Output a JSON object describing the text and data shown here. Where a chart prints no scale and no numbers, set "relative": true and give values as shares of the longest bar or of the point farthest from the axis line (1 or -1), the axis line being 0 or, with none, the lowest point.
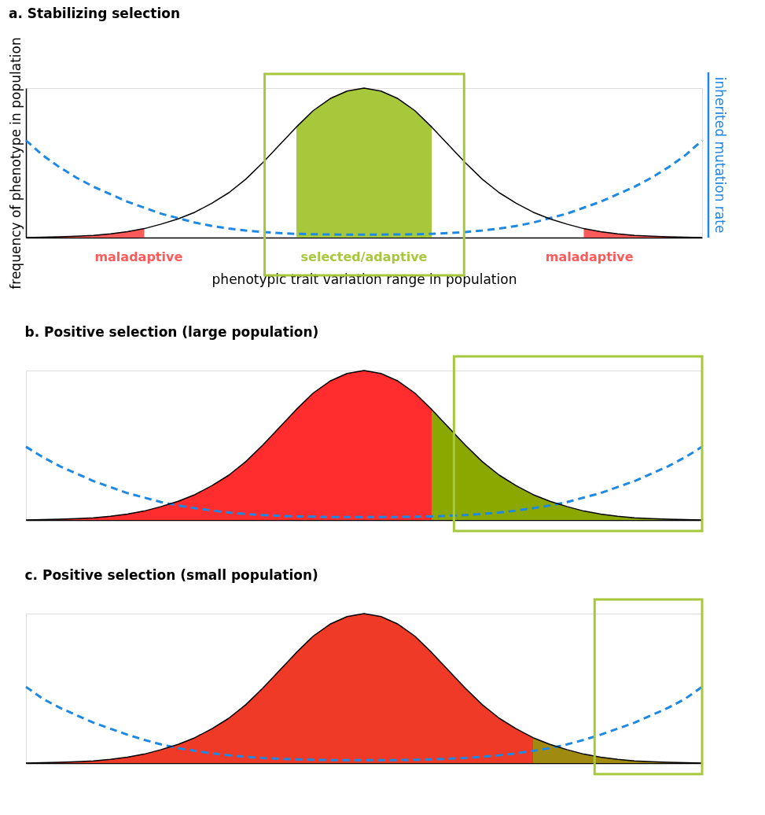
{
  "chart_data": [
    {
      "type": "line",
      "title": "a. Stabilizing selection",
      "xlabel": "phenotypic trait variation range in population",
      "ylabel": "frequency of phenotype in population",
      "y2label": "inherited mutation rate",
      "relative": true,
      "tick_labels": false,
      "categories": [
        null,
        null,
        null,
        null,
        null,
        null,
        null,
        null,
        null,
        null,
        null,
        null,
        null,
        null,
        null,
        null,
        null,
        null,
        null,
        null,
        null,
        null,
        null,
        null,
        null,
        null,
        null,
        null,
        null,
        null,
        null,
        null,
        null,
        null,
        null,
        null,
        null,
        null,
        null,
        null,
        null
      ],
      "annotations": [
        "maladaptive",
        "selected/adaptive",
        "maladaptive"
      ],
      "series": [
        {
          "type": "area",
          "color": "#ff5a5a",
          "values": [
            0,
            0.002,
            0.005,
            0.009,
            0.015,
            0.025,
            0.04,
            0.06,
            null,
            null,
            null,
            null,
            null,
            null,
            null,
            null,
            null,
            null,
            null,
            null,
            null,
            null,
            null,
            null,
            null,
            null,
            null,
            null,
            null,
            null,
            null,
            null,
            null,
            null,
            null,
            null,
            null,
            null,
            null,
            null,
            null
          ]
        },
        {
          "type": "area",
          "color": "#a8c83c",
          "values": [
            null,
            null,
            null,
            null,
            null,
            null,
            null,
            null,
            null,
            null,
            null,
            null,
            null,
            null,
            null,
            null,
            0.74,
            0.85,
            0.93,
            0.98,
            1,
            0.98,
            0.93,
            0.85,
            0.74,
            null,
            null,
            null,
            null,
            null,
            null,
            null,
            null,
            null,
            null,
            null,
            null,
            null,
            null,
            null,
            null
          ]
        },
        {
          "type": "area",
          "color": "#ff5a5a",
          "values": [
            null,
            null,
            null,
            null,
            null,
            null,
            null,
            null,
            null,
            null,
            null,
            null,
            null,
            null,
            null,
            null,
            null,
            null,
            null,
            null,
            null,
            null,
            null,
            null,
            null,
            null,
            null,
            null,
            null,
            null,
            null,
            null,
            null,
            0.06,
            0.04,
            0.025,
            0.015,
            0.009,
            0.005,
            0.002,
            0
          ]
        },
        {
          "type": "line",
          "color": "#1e88e5",
          "line_style": "dashed",
          "values": [
            0.65,
            0.55,
            0.47,
            0.4,
            0.34,
            0.29,
            0.24,
            0.2,
            0.16,
            0.13,
            0.1,
            0.078,
            0.06,
            0.047,
            0.037,
            0.03,
            0.025,
            0.022,
            0.021,
            0.02,
            0.02,
            0.02,
            0.021,
            0.022,
            0.025,
            0.03,
            0.037,
            0.047,
            0.06,
            0.078,
            0.1,
            0.13,
            0.16,
            0.2,
            0.24,
            0.29,
            0.34,
            0.4,
            0.47,
            0.55,
            0.65
          ]
        },
        {
          "type": "line",
          "color": "#000000",
          "values": [
            0,
            0.002,
            0.005,
            0.009,
            0.015,
            0.025,
            0.04,
            0.06,
            0.09,
            0.125,
            0.17,
            0.23,
            0.3,
            0.39,
            0.5,
            0.62,
            0.74,
            0.85,
            0.93,
            0.98,
            1,
            0.98,
            0.93,
            0.85,
            0.74,
            0.62,
            0.5,
            0.39,
            0.3,
            0.23,
            0.17,
            0.125,
            0.09,
            0.06,
            0.04,
            0.025,
            0.015,
            0.009,
            0.005,
            0.002,
            0
          ]
        }
      ]
    },
    {
      "type": "line",
      "title": "b. Positive selection (large population)",
      "relative": true,
      "tick_labels": false,
      "categories": [
        null,
        null,
        null,
        null,
        null,
        null,
        null,
        null,
        null,
        null,
        null,
        null,
        null,
        null,
        null,
        null,
        null,
        null,
        null,
        null,
        null,
        null,
        null,
        null,
        null,
        null,
        null,
        null,
        null,
        null,
        null,
        null,
        null,
        null,
        null,
        null,
        null,
        null,
        null,
        null,
        null
      ],
      "series": [
        {
          "type": "area",
          "color": "#ff2d2d",
          "values": [
            0,
            0.002,
            0.005,
            0.009,
            0.015,
            0.025,
            0.04,
            0.06,
            0.09,
            0.125,
            0.17,
            0.23,
            0.3,
            0.39,
            0.5,
            0.62,
            0.74,
            0.85,
            0.93,
            0.98,
            1,
            0.98,
            0.93,
            0.85,
            0.74,
            null,
            null,
            null,
            null,
            null,
            null,
            null,
            null,
            null,
            null,
            null,
            null,
            null,
            null,
            null,
            null
          ]
        },
        {
          "type": "area",
          "color": "#8aa800",
          "values": [
            null,
            null,
            null,
            null,
            null,
            null,
            null,
            null,
            null,
            null,
            null,
            null,
            null,
            null,
            null,
            null,
            null,
            null,
            null,
            null,
            null,
            null,
            null,
            null,
            0.74,
            0.62,
            0.5,
            0.39,
            0.3,
            0.23,
            0.17,
            0.125,
            0.09,
            0.06,
            0.04,
            0.025,
            0.015,
            0.009,
            0.005,
            0.002,
            0
          ]
        },
        {
          "type": "line",
          "color": "#1e88e5",
          "line_style": "dashed",
          "values": [
            0.49,
            0.42,
            0.36,
            0.31,
            0.26,
            0.22,
            0.18,
            0.15,
            0.12,
            0.097,
            0.079,
            0.063,
            0.05,
            0.04,
            0.033,
            0.028,
            0.024,
            0.022,
            0.02,
            0.02,
            0.02,
            0.02,
            0.02,
            0.022,
            0.024,
            0.028,
            0.033,
            0.04,
            0.05,
            0.063,
            0.079,
            0.097,
            0.12,
            0.15,
            0.18,
            0.22,
            0.26,
            0.31,
            0.36,
            0.42,
            0.49
          ]
        },
        {
          "type": "line",
          "color": "#000000",
          "values": [
            0,
            0.002,
            0.005,
            0.009,
            0.015,
            0.025,
            0.04,
            0.06,
            0.09,
            0.125,
            0.17,
            0.23,
            0.3,
            0.39,
            0.5,
            0.62,
            0.74,
            0.85,
            0.93,
            0.98,
            1,
            0.98,
            0.93,
            0.85,
            0.74,
            0.62,
            0.5,
            0.39,
            0.3,
            0.23,
            0.17,
            0.125,
            0.09,
            0.06,
            0.04,
            0.025,
            0.015,
            0.009,
            0.005,
            0.002,
            0
          ]
        }
      ]
    },
    {
      "type": "line",
      "title": "c. Positive selection (small population)",
      "relative": true,
      "tick_labels": false,
      "categories": [
        null,
        null,
        null,
        null,
        null,
        null,
        null,
        null,
        null,
        null,
        null,
        null,
        null,
        null,
        null,
        null,
        null,
        null,
        null,
        null,
        null,
        null,
        null,
        null,
        null,
        null,
        null,
        null,
        null,
        null,
        null,
        null,
        null,
        null,
        null,
        null,
        null,
        null,
        null,
        null,
        null
      ],
      "series": [
        {
          "type": "area",
          "color": "#f03a28",
          "values": [
            0,
            0.002,
            0.005,
            0.009,
            0.015,
            0.025,
            0.04,
            0.06,
            0.09,
            0.125,
            0.17,
            0.23,
            0.3,
            0.39,
            0.5,
            0.62,
            0.74,
            0.85,
            0.93,
            0.98,
            1,
            0.98,
            0.93,
            0.85,
            0.74,
            0.62,
            0.5,
            0.39,
            0.3,
            0.23,
            0.17,
            null,
            null,
            null,
            null,
            null,
            null,
            null,
            null,
            null,
            null
          ]
        },
        {
          "type": "area",
          "color": "#a08a10",
          "values": [
            null,
            null,
            null,
            null,
            null,
            null,
            null,
            null,
            null,
            null,
            null,
            null,
            null,
            null,
            null,
            null,
            null,
            null,
            null,
            null,
            null,
            null,
            null,
            null,
            null,
            null,
            null,
            null,
            null,
            null,
            0.17,
            0.125,
            0.09,
            0.06,
            0.04,
            0.025,
            0.015,
            0.009,
            0.005,
            0.002,
            0
          ]
        },
        {
          "type": "line",
          "color": "#1e88e5",
          "line_style": "dashed",
          "values": [
            0.51,
            0.43,
            0.37,
            0.32,
            0.27,
            0.23,
            0.19,
            0.155,
            0.125,
            0.1,
            0.082,
            0.065,
            0.052,
            0.042,
            0.034,
            0.029,
            0.025,
            0.022,
            0.02,
            0.02,
            0.02,
            0.02,
            0.02,
            0.022,
            0.025,
            0.029,
            0.034,
            0.042,
            0.052,
            0.065,
            0.082,
            0.1,
            0.125,
            0.155,
            0.19,
            0.23,
            0.27,
            0.32,
            0.37,
            0.43,
            0.51
          ]
        },
        {
          "type": "line",
          "color": "#000000",
          "values": [
            0,
            0.002,
            0.005,
            0.009,
            0.015,
            0.025,
            0.04,
            0.06,
            0.09,
            0.125,
            0.17,
            0.23,
            0.3,
            0.39,
            0.5,
            0.62,
            0.74,
            0.85,
            0.93,
            0.98,
            1,
            0.98,
            0.93,
            0.85,
            0.74,
            0.62,
            0.5,
            0.39,
            0.3,
            0.23,
            0.17,
            0.125,
            0.09,
            0.06,
            0.04,
            0.025,
            0.015,
            0.009,
            0.005,
            0.002,
            0
          ]
        }
      ]
    }
  ]
}
